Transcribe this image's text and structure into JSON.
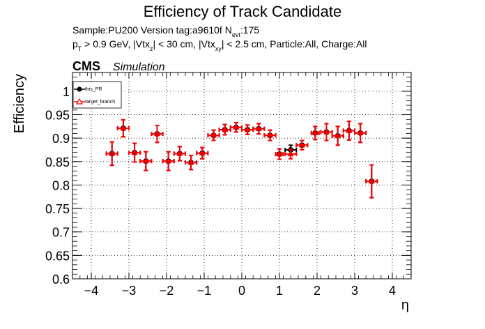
{
  "title": "Efficiency of Track Candidate",
  "info": {
    "line1_a": "Sample:PU200   Version tag:a9610f  N",
    "line1_sub": "evt",
    "line1_b": ":175",
    "line2_p": "p",
    "line2_T": "T",
    "line2_a": " > 0.9 GeV, |Vtx",
    "line2_z": "z",
    "line2_b": "| < 30 cm, |Vtx",
    "line2_xy": "xy",
    "line2_c": "| < 2.5 cm, Particle:All, Charge:All"
  },
  "cms_label": "CMS",
  "simulation_label": "Simulation",
  "colors": {
    "series1": "#000000",
    "series2": "#ff0000",
    "grid": "#000000"
  },
  "chart_data": {
    "type": "scatter",
    "title": "Efficiency of Track Candidate",
    "xlabel": "η",
    "ylabel": "Efficiency",
    "xlim": [
      -4.5,
      4.5
    ],
    "ylim": [
      0.6,
      1.04
    ],
    "xticks": [
      -4,
      -3,
      -2,
      -1,
      0,
      1,
      2,
      3,
      4
    ],
    "xtick_labels": [
      "−4",
      "−3",
      "−2",
      "−1",
      "0",
      "1",
      "2",
      "3",
      "4"
    ],
    "yticks": [
      0.6,
      0.65,
      0.7,
      0.75,
      0.8,
      0.85,
      0.9,
      0.95,
      1.0
    ],
    "ytick_labels": [
      "0.6",
      "0.65",
      "0.7",
      "0.75",
      "0.8",
      "0.85",
      "0.9",
      "0.95",
      "1"
    ],
    "grid": true,
    "legend_position": "top-left",
    "series": [
      {
        "name": "this_PR",
        "marker": "filled-circle",
        "x": [
          -3.45,
          -3.15,
          -2.85,
          -2.55,
          -2.25,
          -1.95,
          -1.65,
          -1.35,
          -1.05,
          -0.75,
          -0.45,
          -0.15,
          0.15,
          0.45,
          0.75,
          1.0,
          1.3,
          1.6,
          1.95,
          2.25,
          2.55,
          2.85,
          3.15,
          3.45
        ],
        "y": [
          0.867,
          0.921,
          0.869,
          0.851,
          0.909,
          0.851,
          0.867,
          0.848,
          0.868,
          0.906,
          0.918,
          0.923,
          0.918,
          0.92,
          0.906,
          0.866,
          0.875,
          0.885,
          0.911,
          0.913,
          0.905,
          0.916,
          0.911,
          0.808
        ],
        "xerr": [
          0.15,
          0.15,
          0.15,
          0.15,
          0.15,
          0.15,
          0.15,
          0.15,
          0.15,
          0.15,
          0.15,
          0.15,
          0.15,
          0.15,
          0.15,
          0.1,
          0.15,
          0.15,
          0.1,
          0.15,
          0.15,
          0.15,
          0.15,
          0.15
        ],
        "yerr": [
          0.025,
          0.018,
          0.02,
          0.02,
          0.018,
          0.02,
          0.015,
          0.015,
          0.012,
          0.011,
          0.011,
          0.01,
          0.01,
          0.011,
          0.011,
          0.011,
          0.01,
          0.01,
          0.014,
          0.018,
          0.02,
          0.02,
          0.02,
          0.035
        ]
      },
      {
        "name": "target_branch",
        "marker": "open-triangle",
        "x": [
          -3.45,
          -3.15,
          -2.85,
          -2.55,
          -2.25,
          -1.95,
          -1.65,
          -1.35,
          -1.05,
          -0.75,
          -0.45,
          -0.15,
          0.15,
          0.45,
          0.75,
          1.0,
          1.3,
          1.6,
          1.95,
          2.25,
          2.55,
          2.85,
          3.15,
          3.45
        ],
        "y": [
          0.867,
          0.921,
          0.869,
          0.851,
          0.909,
          0.851,
          0.867,
          0.848,
          0.868,
          0.906,
          0.918,
          0.923,
          0.918,
          0.92,
          0.906,
          0.866,
          0.866,
          0.885,
          0.911,
          0.913,
          0.905,
          0.916,
          0.911,
          0.808
        ],
        "xerr": [
          0.15,
          0.15,
          0.15,
          0.15,
          0.15,
          0.15,
          0.15,
          0.15,
          0.15,
          0.15,
          0.15,
          0.15,
          0.15,
          0.15,
          0.15,
          0.1,
          0.15,
          0.15,
          0.1,
          0.15,
          0.15,
          0.15,
          0.15,
          0.15
        ],
        "yerr": [
          0.025,
          0.018,
          0.02,
          0.02,
          0.018,
          0.02,
          0.015,
          0.015,
          0.012,
          0.011,
          0.011,
          0.01,
          0.01,
          0.011,
          0.011,
          0.011,
          0.01,
          0.01,
          0.014,
          0.018,
          0.02,
          0.02,
          0.02,
          0.035
        ]
      }
    ]
  }
}
